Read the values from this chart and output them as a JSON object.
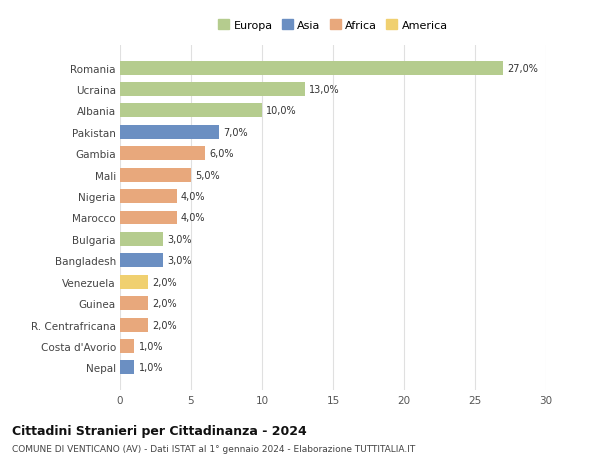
{
  "countries": [
    "Romania",
    "Ucraina",
    "Albania",
    "Pakistan",
    "Gambia",
    "Mali",
    "Nigeria",
    "Marocco",
    "Bulgaria",
    "Bangladesh",
    "Venezuela",
    "Guinea",
    "R. Centrafricana",
    "Costa d'Avorio",
    "Nepal"
  ],
  "values": [
    27.0,
    13.0,
    10.0,
    7.0,
    6.0,
    5.0,
    4.0,
    4.0,
    3.0,
    3.0,
    2.0,
    2.0,
    2.0,
    1.0,
    1.0
  ],
  "labels": [
    "27,0%",
    "13,0%",
    "10,0%",
    "7,0%",
    "6,0%",
    "5,0%",
    "4,0%",
    "4,0%",
    "3,0%",
    "3,0%",
    "2,0%",
    "2,0%",
    "2,0%",
    "1,0%",
    "1,0%"
  ],
  "colors": [
    "#b5cc8e",
    "#b5cc8e",
    "#b5cc8e",
    "#6b8fc2",
    "#e8a87c",
    "#e8a87c",
    "#e8a87c",
    "#e8a87c",
    "#b5cc8e",
    "#6b8fc2",
    "#f0d070",
    "#e8a87c",
    "#e8a87c",
    "#e8a87c",
    "#6b8fc2"
  ],
  "legend_labels": [
    "Europa",
    "Asia",
    "Africa",
    "America"
  ],
  "legend_colors": [
    "#b5cc8e",
    "#6b8fc2",
    "#e8a87c",
    "#f0d070"
  ],
  "title": "Cittadini Stranieri per Cittadinanza - 2024",
  "subtitle": "COMUNE DI VENTICANO (AV) - Dati ISTAT al 1° gennaio 2024 - Elaborazione TUTTITALIA.IT",
  "xlim": [
    0,
    30
  ],
  "xticks": [
    0,
    5,
    10,
    15,
    20,
    25,
    30
  ],
  "background_color": "#ffffff",
  "grid_color": "#e0e0e0",
  "bar_height": 0.65
}
